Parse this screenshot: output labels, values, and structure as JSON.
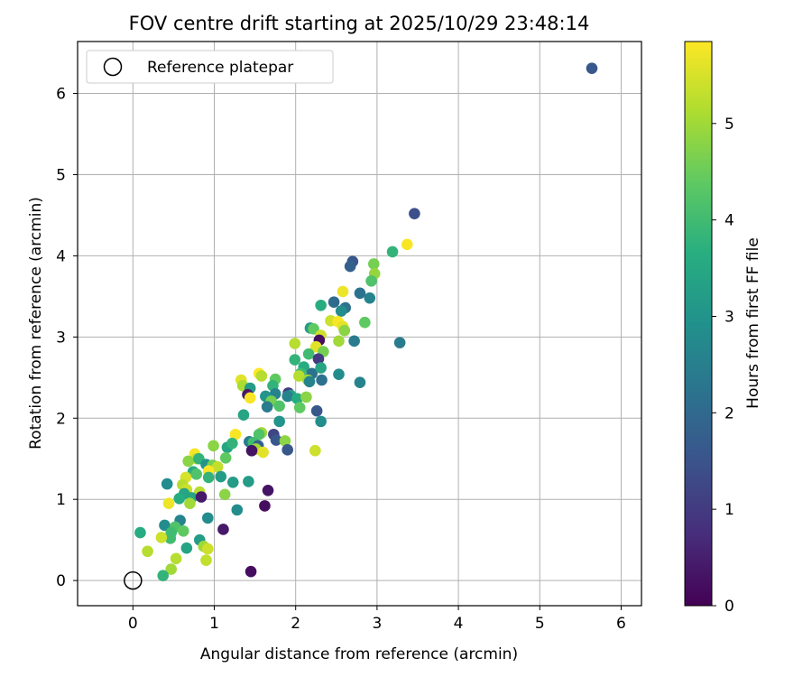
{
  "chart_data": {
    "type": "scatter",
    "title": "FOV centre drift starting at 2025/10/29 23:48:14",
    "xlabel": "Angular distance from reference (arcmin)",
    "ylabel": "Rotation from reference (arcmin)",
    "xlim": [
      -0.68,
      6.25
    ],
    "ylim": [
      -0.31,
      6.64
    ],
    "xticks": [
      0,
      1,
      2,
      3,
      4,
      5,
      6
    ],
    "yticks": [
      0,
      1,
      2,
      3,
      4,
      5,
      6
    ],
    "grid": true,
    "legend": {
      "placement": "top-left",
      "entries": [
        "Reference platepar"
      ]
    },
    "reference_point": {
      "x": 0,
      "y": 0
    },
    "colorbar": {
      "label": "Hours from first FF file",
      "colormap": "viridis",
      "range": [
        0,
        5.85
      ],
      "ticks": [
        0,
        1,
        2,
        3,
        4,
        5
      ]
    },
    "points": [
      [
        5.64,
        6.31,
        1.6
      ],
      [
        3.46,
        4.52,
        1.4
      ],
      [
        3.37,
        4.14,
        5.8
      ],
      [
        3.19,
        4.05,
        3.8
      ],
      [
        2.96,
        3.9,
        4.6
      ],
      [
        2.97,
        3.78,
        4.9
      ],
      [
        2.7,
        3.93,
        1.6
      ],
      [
        2.67,
        3.87,
        1.8
      ],
      [
        2.93,
        3.69,
        4.2
      ],
      [
        2.79,
        3.54,
        2.2
      ],
      [
        2.58,
        3.56,
        5.7
      ],
      [
        2.91,
        3.48,
        2.6
      ],
      [
        2.47,
        3.43,
        2.0
      ],
      [
        2.61,
        3.36,
        2.2
      ],
      [
        2.56,
        3.32,
        2.8
      ],
      [
        2.31,
        3.39,
        3.6
      ],
      [
        2.43,
        3.2,
        5.4
      ],
      [
        2.52,
        3.19,
        5.8
      ],
      [
        2.58,
        3.13,
        5.6
      ],
      [
        2.6,
        3.08,
        4.8
      ],
      [
        2.53,
        2.95,
        5.0
      ],
      [
        2.72,
        2.95,
        2.4
      ],
      [
        2.85,
        3.18,
        4.4
      ],
      [
        3.28,
        2.93,
        2.4
      ],
      [
        2.18,
        3.11,
        3.2
      ],
      [
        2.22,
        3.1,
        4.4
      ],
      [
        2.31,
        3.02,
        5.4
      ],
      [
        2.29,
        2.96,
        0.2
      ],
      [
        2.25,
        2.88,
        5.6
      ],
      [
        2.34,
        2.82,
        4.6
      ],
      [
        1.99,
        2.92,
        5.2
      ],
      [
        2.16,
        2.79,
        4.0
      ],
      [
        2.28,
        2.73,
        1.0
      ],
      [
        1.99,
        2.72,
        3.8
      ],
      [
        2.1,
        2.63,
        3.6
      ],
      [
        2.2,
        2.55,
        2.2
      ],
      [
        2.06,
        2.55,
        4.0
      ],
      [
        2.04,
        2.52,
        5.2
      ],
      [
        2.15,
        2.47,
        5.0
      ],
      [
        2.17,
        2.45,
        2.6
      ],
      [
        2.31,
        2.62,
        3.4
      ],
      [
        2.32,
        2.47,
        2.2
      ],
      [
        2.53,
        2.54,
        2.8
      ],
      [
        2.79,
        2.44,
        2.6
      ],
      [
        1.55,
        2.55,
        5.9
      ],
      [
        1.58,
        2.52,
        5.2
      ],
      [
        1.75,
        2.48,
        4.4
      ],
      [
        1.72,
        2.4,
        3.8
      ],
      [
        1.33,
        2.47,
        5.6
      ],
      [
        1.35,
        2.4,
        5.1
      ],
      [
        1.44,
        2.37,
        3.2
      ],
      [
        1.75,
        2.3,
        2.6
      ],
      [
        1.91,
        2.31,
        1.0
      ],
      [
        1.94,
        2.28,
        3.4
      ],
      [
        1.9,
        2.27,
        2.6
      ],
      [
        2.02,
        2.24,
        3.6
      ],
      [
        2.13,
        2.26,
        4.8
      ],
      [
        1.63,
        2.27,
        3.0
      ],
      [
        1.7,
        2.21,
        4.6
      ],
      [
        1.41,
        2.29,
        0.4
      ],
      [
        1.44,
        2.25,
        5.8
      ],
      [
        1.65,
        2.14,
        2.4
      ],
      [
        1.8,
        2.15,
        4.2
      ],
      [
        2.05,
        2.13,
        4.4
      ],
      [
        2.26,
        2.09,
        1.6
      ],
      [
        1.36,
        2.04,
        3.4
      ],
      [
        1.8,
        1.96,
        3.0
      ],
      [
        2.31,
        1.96,
        2.8
      ],
      [
        1.58,
        1.82,
        5.0
      ],
      [
        1.55,
        1.8,
        4.2
      ],
      [
        1.73,
        1.8,
        1.2
      ],
      [
        1.76,
        1.73,
        1.6
      ],
      [
        1.87,
        1.72,
        4.8
      ],
      [
        1.26,
        1.8,
        5.8
      ],
      [
        1.43,
        1.71,
        2.4
      ],
      [
        1.48,
        1.7,
        4.0
      ],
      [
        1.54,
        1.66,
        1.8
      ],
      [
        1.51,
        1.62,
        5.0
      ],
      [
        1.46,
        1.6,
        0.3
      ],
      [
        1.6,
        1.58,
        5.6
      ],
      [
        1.9,
        1.61,
        1.6
      ],
      [
        2.24,
        1.6,
        5.4
      ],
      [
        0.99,
        1.66,
        4.8
      ],
      [
        1.16,
        1.64,
        3.4
      ],
      [
        1.22,
        1.69,
        3.8
      ],
      [
        0.76,
        1.56,
        5.8
      ],
      [
        0.78,
        1.5,
        5.4
      ],
      [
        0.68,
        1.47,
        4.8
      ],
      [
        0.81,
        1.5,
        3.8
      ],
      [
        0.9,
        1.43,
        3.0
      ],
      [
        0.98,
        1.42,
        4.6
      ],
      [
        1.04,
        1.4,
        5.3
      ],
      [
        0.93,
        1.35,
        5.8
      ],
      [
        1.14,
        1.51,
        4.4
      ],
      [
        1.08,
        1.28,
        3.2
      ],
      [
        0.74,
        1.34,
        3.6
      ],
      [
        0.78,
        1.31,
        4.2
      ],
      [
        0.93,
        1.27,
        3.8
      ],
      [
        0.65,
        1.27,
        5.5
      ],
      [
        0.61,
        1.18,
        5.2
      ],
      [
        0.66,
        1.12,
        5.4
      ],
      [
        0.82,
        1.09,
        5.2
      ],
      [
        1.23,
        1.21,
        3.2
      ],
      [
        1.42,
        1.22,
        3.2
      ],
      [
        0.42,
        1.19,
        2.8
      ],
      [
        0.63,
        1.07,
        3.4
      ],
      [
        0.57,
        1.01,
        3.6
      ],
      [
        0.72,
        1.02,
        3.4
      ],
      [
        0.84,
        1.03,
        0.4
      ],
      [
        1.13,
        1.06,
        4.8
      ],
      [
        1.66,
        1.11,
        0.3
      ],
      [
        0.44,
        0.95,
        5.7
      ],
      [
        0.7,
        0.95,
        5.0
      ],
      [
        1.28,
        0.87,
        2.8
      ],
      [
        1.62,
        0.92,
        0.2
      ],
      [
        0.58,
        0.74,
        2.6
      ],
      [
        0.92,
        0.77,
        2.8
      ],
      [
        0.39,
        0.68,
        2.8
      ],
      [
        0.52,
        0.66,
        4.2
      ],
      [
        0.47,
        0.59,
        4.0
      ],
      [
        0.62,
        0.61,
        4.4
      ],
      [
        0.46,
        0.52,
        4.0
      ],
      [
        0.35,
        0.53,
        5.4
      ],
      [
        0.09,
        0.59,
        3.6
      ],
      [
        0.82,
        0.5,
        3.2
      ],
      [
        0.87,
        0.42,
        5.0
      ],
      [
        0.92,
        0.39,
        5.4
      ],
      [
        0.66,
        0.4,
        3.4
      ],
      [
        1.11,
        0.63,
        0.4
      ],
      [
        0.18,
        0.36,
        5.2
      ],
      [
        0.53,
        0.27,
        5.2
      ],
      [
        0.9,
        0.25,
        5.3
      ],
      [
        0.47,
        0.14,
        5.0
      ],
      [
        0.37,
        0.06,
        3.8
      ],
      [
        1.45,
        0.11,
        0.2
      ]
    ]
  }
}
